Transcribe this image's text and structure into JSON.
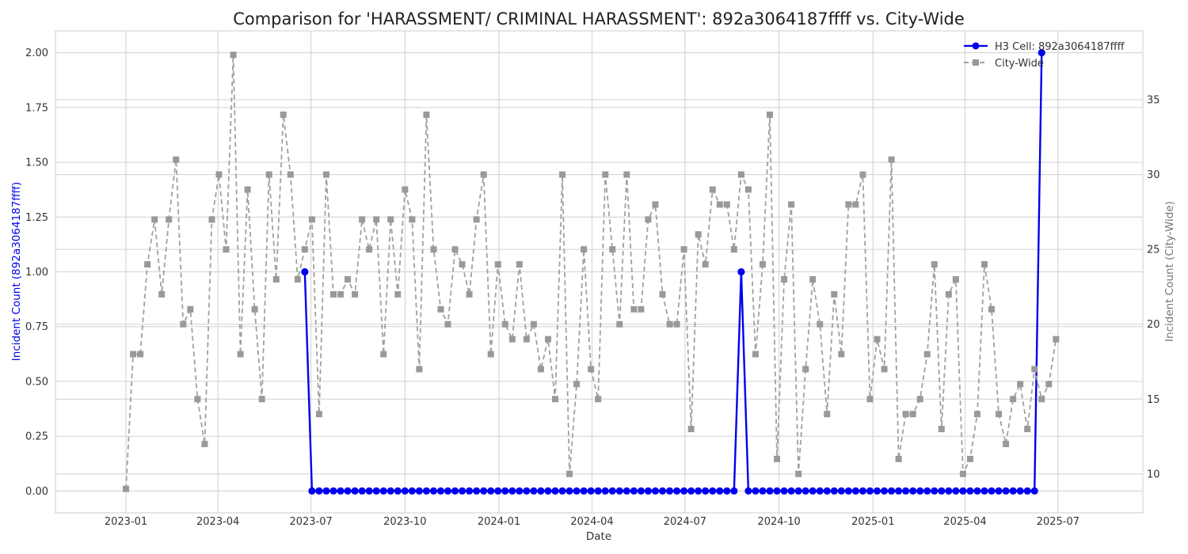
{
  "chart_data": {
    "type": "line",
    "title": "Comparison for 'HARASSMENT/ CRIMINAL HARASSMENT': 892a3064187ffff vs. City-Wide",
    "xlabel": "Date",
    "ylabel_left": "Incident Count (892a3064187ffff)",
    "ylabel_right": "Incident Count (City-Wide)",
    "x_ticks": [
      "2023-01",
      "2023-04",
      "2023-07",
      "2023-10",
      "2024-01",
      "2024-04",
      "2024-07",
      "2024-10",
      "2025-01",
      "2025-04",
      "2025-07"
    ],
    "x_range": [
      "2022-10-24",
      "2025-09-22"
    ],
    "y_left_ticks": [
      "0.00",
      "0.25",
      "0.50",
      "0.75",
      "1.00",
      "1.25",
      "1.50",
      "1.75",
      "2.00"
    ],
    "y_left_range": [
      -0.1,
      2.1
    ],
    "y_right_ticks": [
      "10",
      "15",
      "20",
      "25",
      "30",
      "35"
    ],
    "y_right_range": [
      7.4,
      39.6
    ],
    "grid": true,
    "legend": {
      "position": "top-right"
    },
    "series": [
      {
        "name": "H3 Cell: 892a3064187ffff",
        "axis": "left",
        "color": "#0000ee",
        "style": "solid",
        "marker": "circle",
        "x": [
          "2023-06-25",
          "2023-07-02",
          "2023-07-09",
          "2023-07-16",
          "2023-07-23",
          "2023-07-30",
          "2023-08-06",
          "2023-08-13",
          "2023-08-20",
          "2023-08-27",
          "2023-09-03",
          "2023-09-10",
          "2023-09-17",
          "2023-09-24",
          "2023-10-01",
          "2023-10-08",
          "2023-10-15",
          "2023-10-22",
          "2023-10-29",
          "2023-11-05",
          "2023-11-12",
          "2023-11-19",
          "2023-11-26",
          "2023-12-03",
          "2023-12-10",
          "2023-12-17",
          "2023-12-24",
          "2023-12-31",
          "2024-01-07",
          "2024-01-14",
          "2024-01-21",
          "2024-01-28",
          "2024-02-04",
          "2024-02-11",
          "2024-02-18",
          "2024-02-25",
          "2024-03-03",
          "2024-03-10",
          "2024-03-17",
          "2024-03-24",
          "2024-03-31",
          "2024-04-07",
          "2024-04-14",
          "2024-04-21",
          "2024-04-28",
          "2024-05-05",
          "2024-05-12",
          "2024-05-19",
          "2024-05-26",
          "2024-06-02",
          "2024-06-09",
          "2024-06-16",
          "2024-06-23",
          "2024-06-30",
          "2024-07-07",
          "2024-07-14",
          "2024-07-21",
          "2024-07-28",
          "2024-08-04",
          "2024-08-11",
          "2024-08-18",
          "2024-08-25",
          "2024-09-01",
          "2024-09-08",
          "2024-09-15",
          "2024-09-22",
          "2024-09-29",
          "2024-10-06",
          "2024-10-13",
          "2024-10-20",
          "2024-10-27",
          "2024-11-03",
          "2024-11-10",
          "2024-11-17",
          "2024-11-24",
          "2024-12-01",
          "2024-12-08",
          "2024-12-15",
          "2024-12-22",
          "2024-12-29",
          "2025-01-05",
          "2025-01-12",
          "2025-01-19",
          "2025-01-26",
          "2025-02-02",
          "2025-02-09",
          "2025-02-16",
          "2025-02-23",
          "2025-03-02",
          "2025-03-09",
          "2025-03-16",
          "2025-03-23",
          "2025-03-30",
          "2025-04-06",
          "2025-04-13",
          "2025-04-20",
          "2025-04-27",
          "2025-05-04",
          "2025-05-11",
          "2025-05-18",
          "2025-05-25",
          "2025-06-01",
          "2025-06-08",
          "2025-06-15"
        ],
        "values": [
          1,
          0,
          0,
          0,
          0,
          0,
          0,
          0,
          0,
          0,
          0,
          0,
          0,
          0,
          0,
          0,
          0,
          0,
          0,
          0,
          0,
          0,
          0,
          0,
          0,
          0,
          0,
          0,
          0,
          0,
          0,
          0,
          0,
          0,
          0,
          0,
          0,
          0,
          0,
          0,
          0,
          0,
          0,
          0,
          0,
          0,
          0,
          0,
          0,
          0,
          0,
          0,
          0,
          0,
          0,
          0,
          0,
          0,
          0,
          0,
          0,
          1,
          0,
          0,
          0,
          0,
          0,
          0,
          0,
          0,
          0,
          0,
          0,
          0,
          0,
          0,
          0,
          0,
          0,
          0,
          0,
          0,
          0,
          0,
          0,
          0,
          0,
          0,
          0,
          0,
          0,
          0,
          0,
          0,
          0,
          0,
          0,
          0,
          0,
          0,
          0,
          0,
          0,
          2
        ]
      },
      {
        "name": "City-Wide",
        "axis": "right",
        "color": "#a0a0a0",
        "style": "dashed",
        "marker": "square",
        "x": [
          "2023-01-01",
          "2023-01-08",
          "2023-01-15",
          "2023-01-22",
          "2023-01-29",
          "2023-02-05",
          "2023-02-12",
          "2023-02-19",
          "2023-02-26",
          "2023-03-05",
          "2023-03-12",
          "2023-03-19",
          "2023-03-26",
          "2023-04-02",
          "2023-04-09",
          "2023-04-16",
          "2023-04-23",
          "2023-04-30",
          "2023-05-07",
          "2023-05-14",
          "2023-05-21",
          "2023-05-28",
          "2023-06-04",
          "2023-06-11",
          "2023-06-18",
          "2023-06-25",
          "2023-07-02",
          "2023-07-09",
          "2023-07-16",
          "2023-07-23",
          "2023-07-30",
          "2023-08-06",
          "2023-08-13",
          "2023-08-20",
          "2023-08-27",
          "2023-09-03",
          "2023-09-10",
          "2023-09-17",
          "2023-09-24",
          "2023-10-01",
          "2023-10-08",
          "2023-10-15",
          "2023-10-22",
          "2023-10-29",
          "2023-11-05",
          "2023-11-12",
          "2023-11-19",
          "2023-11-26",
          "2023-12-03",
          "2023-12-10",
          "2023-12-17",
          "2023-12-24",
          "2023-12-31",
          "2024-01-07",
          "2024-01-14",
          "2024-01-21",
          "2024-01-28",
          "2024-02-04",
          "2024-02-11",
          "2024-02-18",
          "2024-02-25",
          "2024-03-03",
          "2024-03-10",
          "2024-03-17",
          "2024-03-24",
          "2024-03-31",
          "2024-04-07",
          "2024-04-14",
          "2024-04-21",
          "2024-04-28",
          "2024-05-05",
          "2024-05-12",
          "2024-05-19",
          "2024-05-26",
          "2024-06-02",
          "2024-06-09",
          "2024-06-16",
          "2024-06-23",
          "2024-06-30",
          "2024-07-07",
          "2024-07-14",
          "2024-07-21",
          "2024-07-28",
          "2024-08-04",
          "2024-08-11",
          "2024-08-18",
          "2024-08-25",
          "2024-09-01",
          "2024-09-08",
          "2024-09-15",
          "2024-09-22",
          "2024-09-29",
          "2024-10-06",
          "2024-10-13",
          "2024-10-20",
          "2024-10-27",
          "2024-11-03",
          "2024-11-10",
          "2024-11-17",
          "2024-11-24",
          "2024-12-01",
          "2024-12-08",
          "2024-12-15",
          "2024-12-22",
          "2024-12-29",
          "2025-01-05",
          "2025-01-12",
          "2025-01-19",
          "2025-01-26",
          "2025-02-02",
          "2025-02-09",
          "2025-02-16",
          "2025-02-23",
          "2025-03-02",
          "2025-03-09",
          "2025-03-16",
          "2025-03-23",
          "2025-03-30",
          "2025-04-06",
          "2025-04-13",
          "2025-04-20",
          "2025-04-27",
          "2025-05-04",
          "2025-05-11",
          "2025-05-18",
          "2025-05-25",
          "2025-06-01",
          "2025-06-08",
          "2025-06-15",
          "2025-06-22",
          "2025-06-29"
        ],
        "values": [
          9,
          18,
          18,
          24,
          27,
          22,
          27,
          31,
          20,
          21,
          15,
          12,
          27,
          30,
          25,
          38,
          18,
          29,
          21,
          15,
          30,
          23,
          34,
          30,
          23,
          25,
          27,
          14,
          30,
          22,
          22,
          23,
          22,
          27,
          25,
          27,
          18,
          27,
          22,
          29,
          27,
          17,
          34,
          25,
          21,
          20,
          25,
          24,
          22,
          27,
          30,
          18,
          24,
          20,
          19,
          24,
          19,
          20,
          17,
          19,
          15,
          30,
          10,
          16,
          25,
          17,
          15,
          30,
          25,
          20,
          30,
          21,
          21,
          27,
          28,
          22,
          20,
          20,
          25,
          13,
          26,
          24,
          29,
          28,
          28,
          25,
          30,
          29,
          18,
          24,
          34,
          11,
          23,
          28,
          10,
          17,
          23,
          20,
          14,
          22,
          18,
          28,
          28,
          30,
          15,
          19,
          17,
          31,
          11,
          14,
          14,
          15,
          18,
          24,
          13,
          22,
          23,
          10,
          11,
          14,
          24,
          21,
          14,
          12,
          15,
          16,
          13,
          17,
          15,
          16,
          19
        ]
      }
    ]
  }
}
